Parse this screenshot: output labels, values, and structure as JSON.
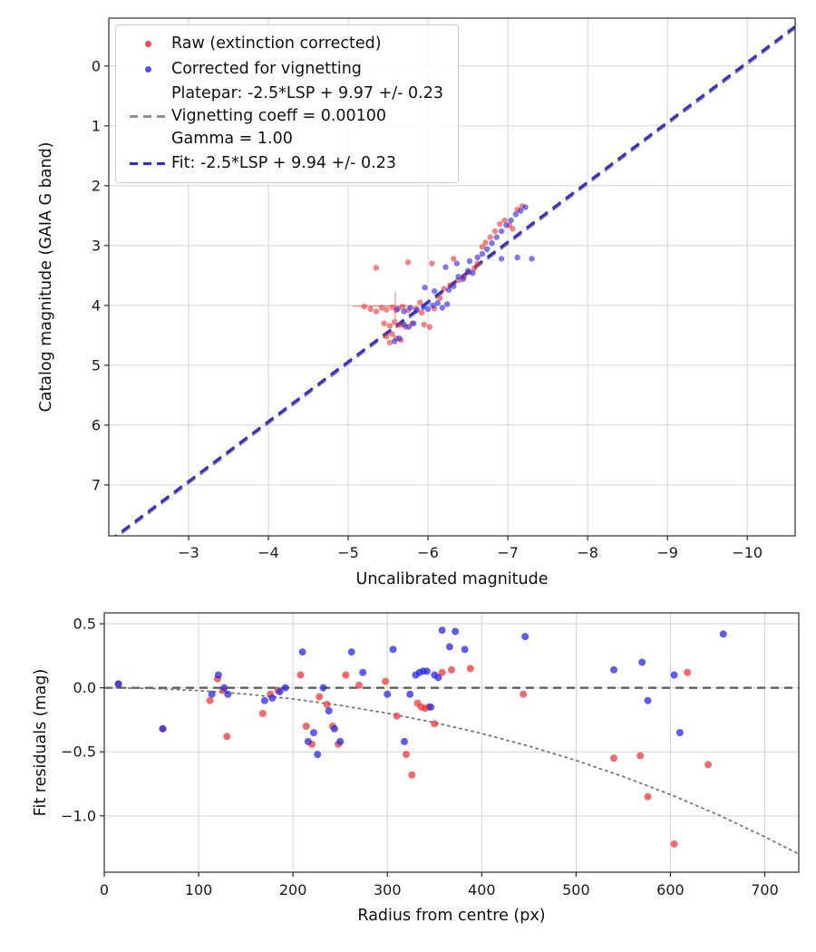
{
  "chart_data": [
    {
      "type": "scatter",
      "name": "magnitude-fit-plot",
      "title": "",
      "xlabel": "Uncalibrated magnitude",
      "ylabel": "Catalog magnitude (GAIA G band)",
      "xlim": [
        -2.0,
        -10.6
      ],
      "ylim": [
        7.85,
        -0.8
      ],
      "grid": true,
      "xticks": [
        -3,
        -4,
        -5,
        -6,
        -7,
        -8,
        -9,
        -10
      ],
      "xtick_labels": [
        "−3",
        "−4",
        "−5",
        "−6",
        "−7",
        "−8",
        "−9",
        "−10"
      ],
      "yticks": [
        0,
        1,
        2,
        3,
        4,
        5,
        6,
        7
      ],
      "ytick_labels": [
        "0",
        "1",
        "2",
        "3",
        "4",
        "5",
        "6",
        "7"
      ],
      "legend": [
        {
          "marker": "dot",
          "color": "#eb2d2d",
          "label": "Raw (extinction corrected)"
        },
        {
          "marker": "dot",
          "color": "#3232eb",
          "label": "Corrected for vignetting"
        },
        {
          "marker": "dash",
          "color": "#8f8f8f",
          "lines": [
            "Platepar: -2.5*LSP + 9.97 +/- 0.23",
            "Vignetting coeff = 0.00100",
            "Gamma = 1.00"
          ]
        },
        {
          "marker": "dash",
          "color": "#2a2ad9",
          "label": "Fit: -2.5*LSP + 9.94 +/- 0.23"
        }
      ],
      "series": [
        {
          "name": "platepar-line",
          "type": "line",
          "slope": 1,
          "intercept": 9.97,
          "color": "#8a8a8a",
          "dash": "11 7",
          "width": 2.6,
          "alpha": 1
        },
        {
          "name": "fit-line",
          "type": "line",
          "slope": 1,
          "intercept": 9.94,
          "color": "#2424cc",
          "dash": "11 7",
          "width": 3,
          "alpha": 0.92
        },
        {
          "name": "errorbar-horizontal",
          "type": "segment",
          "color": "#ff3030",
          "width": 1.2,
          "alpha": 0.55,
          "points": [
            [
              -5.06,
              4.01
            ],
            [
              -5.8,
              4.01
            ]
          ]
        },
        {
          "name": "errorbar-vertical",
          "type": "segment",
          "color": "#ff3030",
          "width": 1.2,
          "alpha": 0.55,
          "points": [
            [
              -5.59,
              3.78
            ],
            [
              -5.59,
              4.24
            ]
          ]
        },
        {
          "name": "raw-extinction-corrected",
          "type": "scatter",
          "color": "#f03030",
          "alpha": 0.6,
          "size": 3.2,
          "points": [
            [
              -5.2,
              4.02
            ],
            [
              -5.28,
              4.06
            ],
            [
              -5.35,
              4.1
            ],
            [
              -5.42,
              4.04
            ],
            [
              -5.48,
              4.07
            ],
            [
              -5.55,
              4.03
            ],
            [
              -5.6,
              4.08
            ],
            [
              -5.68,
              4.02
            ],
            [
              -5.75,
              4.08
            ],
            [
              -5.85,
              4.05
            ],
            [
              -5.92,
              4.12
            ],
            [
              -5.45,
              4.3
            ],
            [
              -5.52,
              4.34
            ],
            [
              -5.58,
              4.28
            ],
            [
              -5.65,
              4.33
            ],
            [
              -5.72,
              4.36
            ],
            [
              -5.8,
              4.3
            ],
            [
              -5.95,
              4.32
            ],
            [
              -6.02,
              4.36
            ],
            [
              -5.48,
              4.52
            ],
            [
              -5.55,
              4.48
            ],
            [
              -5.6,
              4.55
            ],
            [
              -5.66,
              4.58
            ],
            [
              -5.52,
              4.62
            ],
            [
              -5.9,
              3.95
            ],
            [
              -6.08,
              4.05
            ],
            [
              -6.15,
              3.88
            ],
            [
              -5.35,
              3.37
            ],
            [
              -5.75,
              3.28
            ],
            [
              -6.05,
              3.3
            ],
            [
              -6.2,
              3.72
            ],
            [
              -6.28,
              3.66
            ],
            [
              -6.38,
              3.58
            ],
            [
              -6.45,
              3.52
            ],
            [
              -6.52,
              3.44
            ],
            [
              -6.32,
              3.22
            ],
            [
              -6.58,
              3.38
            ],
            [
              -6.62,
              3.3
            ],
            [
              -6.68,
              3.02
            ],
            [
              -6.72,
              2.95
            ],
            [
              -6.78,
              2.86
            ],
            [
              -6.84,
              2.76
            ],
            [
              -6.9,
              2.64
            ],
            [
              -6.96,
              2.58
            ],
            [
              -7.02,
              2.66
            ],
            [
              -7.06,
              2.72
            ],
            [
              -7.12,
              2.4
            ],
            [
              -7.18,
              2.34
            ]
          ]
        },
        {
          "name": "corrected-for-vignetting",
          "type": "scatter",
          "color": "#2828e8",
          "alpha": 0.62,
          "size": 3.2,
          "points": [
            [
              -5.58,
              4.6
            ],
            [
              -5.64,
              4.55
            ],
            [
              -5.7,
              4.32
            ],
            [
              -5.76,
              4.36
            ],
            [
              -5.82,
              4.3
            ],
            [
              -5.62,
              4.06
            ],
            [
              -5.7,
              4.1
            ],
            [
              -5.78,
              4.04
            ],
            [
              -5.86,
              4.08
            ],
            [
              -5.94,
              4.03
            ],
            [
              -6.0,
              4.06
            ],
            [
              -6.06,
              4.0
            ],
            [
              -6.12,
              3.96
            ],
            [
              -6.18,
              4.04
            ],
            [
              -6.24,
              3.98
            ],
            [
              -5.96,
              3.7
            ],
            [
              -6.08,
              3.76
            ],
            [
              -6.26,
              3.74
            ],
            [
              -6.32,
              3.68
            ],
            [
              -6.38,
              3.52
            ],
            [
              -6.44,
              3.56
            ],
            [
              -6.5,
              3.42
            ],
            [
              -6.56,
              3.46
            ],
            [
              -6.22,
              3.36
            ],
            [
              -6.36,
              3.3
            ],
            [
              -6.52,
              3.26
            ],
            [
              -6.62,
              3.2
            ],
            [
              -6.68,
              3.14
            ],
            [
              -6.74,
              3.06
            ],
            [
              -6.8,
              2.96
            ],
            [
              -6.86,
              2.86
            ],
            [
              -6.92,
              2.76
            ],
            [
              -6.98,
              2.66
            ],
            [
              -7.04,
              2.58
            ],
            [
              -7.1,
              2.48
            ],
            [
              -7.16,
              2.42
            ],
            [
              -7.22,
              2.36
            ],
            [
              -6.92,
              3.22
            ],
            [
              -7.12,
              3.2
            ],
            [
              -7.3,
              3.22
            ]
          ]
        }
      ]
    },
    {
      "type": "scatter",
      "name": "residuals-plot",
      "title": "",
      "xlabel": "Radius from centre (px)",
      "ylabel": "Fit residuals (mag)",
      "xlim": [
        0,
        736
      ],
      "ylim": [
        -1.44,
        0.585
      ],
      "grid": true,
      "xticks": [
        0,
        100,
        200,
        300,
        400,
        500,
        600,
        700
      ],
      "xtick_labels": [
        "0",
        "100",
        "200",
        "300",
        "400",
        "500",
        "600",
        "700"
      ],
      "yticks": [
        0.5,
        0.0,
        -0.5,
        -1.0
      ],
      "ytick_labels": [
        "0.5",
        "0.0",
        "−0.5",
        "−1.0"
      ],
      "series": [
        {
          "name": "zero-residual-line",
          "type": "line",
          "slope": 0,
          "intercept": 0,
          "color": "#555555",
          "dash": "9 6",
          "width": 2.2,
          "alpha": 1
        },
        {
          "name": "vignetting-model-curve",
          "type": "curve",
          "color": "#787878",
          "dash": "2.2 4.5",
          "width": 1.8,
          "alpha": 1,
          "points": [
            [
              0,
              0
            ],
            [
              50,
              -0.005
            ],
            [
              100,
              -0.022
            ],
            [
              150,
              -0.049
            ],
            [
              200,
              -0.087
            ],
            [
              250,
              -0.137
            ],
            [
              300,
              -0.198
            ],
            [
              350,
              -0.272
            ],
            [
              400,
              -0.357
            ],
            [
              450,
              -0.455
            ],
            [
              500,
              -0.567
            ],
            [
              550,
              -0.693
            ],
            [
              600,
              -0.834
            ],
            [
              650,
              -0.99
            ],
            [
              700,
              -1.164
            ],
            [
              736,
              -1.297
            ]
          ]
        },
        {
          "name": "raw-residuals",
          "type": "scatter",
          "color": "#f03030",
          "alpha": 0.72,
          "size": 4,
          "points": [
            [
              15,
              0.03
            ],
            [
              62,
              -0.32
            ],
            [
              112,
              -0.1
            ],
            [
              120,
              0.07
            ],
            [
              126,
              -0.02
            ],
            [
              130,
              -0.38
            ],
            [
              168,
              -0.2
            ],
            [
              176,
              -0.05
            ],
            [
              184,
              -0.02
            ],
            [
              208,
              0.1
            ],
            [
              214,
              -0.3
            ],
            [
              220,
              -0.44
            ],
            [
              228,
              -0.07
            ],
            [
              236,
              -0.13
            ],
            [
              242,
              -0.3
            ],
            [
              248,
              -0.44
            ],
            [
              256,
              0.1
            ],
            [
              270,
              0.02
            ],
            [
              298,
              0.05
            ],
            [
              310,
              -0.22
            ],
            [
              320,
              -0.52
            ],
            [
              326,
              -0.68
            ],
            [
              332,
              -0.12
            ],
            [
              336,
              -0.15
            ],
            [
              340,
              -0.16
            ],
            [
              344,
              -0.15
            ],
            [
              350,
              -0.28
            ],
            [
              358,
              0.12
            ],
            [
              368,
              0.14
            ],
            [
              388,
              0.15
            ],
            [
              444,
              -0.05
            ],
            [
              540,
              -0.55
            ],
            [
              568,
              -0.53
            ],
            [
              576,
              -0.85
            ],
            [
              604,
              -1.22
            ],
            [
              618,
              0.12
            ],
            [
              640,
              -0.6
            ]
          ]
        },
        {
          "name": "corrected-residuals",
          "type": "scatter",
          "color": "#2828e8",
          "alpha": 0.75,
          "size": 4,
          "points": [
            [
              15,
              0.03
            ],
            [
              62,
              -0.32
            ],
            [
              114,
              -0.05
            ],
            [
              121,
              0.1
            ],
            [
              127,
              0.0
            ],
            [
              131,
              -0.05
            ],
            [
              170,
              -0.1
            ],
            [
              178,
              -0.08
            ],
            [
              186,
              -0.03
            ],
            [
              192,
              0.0
            ],
            [
              210,
              0.28
            ],
            [
              216,
              -0.42
            ],
            [
              222,
              -0.35
            ],
            [
              226,
              -0.52
            ],
            [
              232,
              0.0
            ],
            [
              238,
              -0.18
            ],
            [
              244,
              -0.32
            ],
            [
              250,
              -0.42
            ],
            [
              262,
              0.28
            ],
            [
              274,
              0.12
            ],
            [
              300,
              -0.05
            ],
            [
              306,
              0.3
            ],
            [
              318,
              -0.42
            ],
            [
              324,
              -0.05
            ],
            [
              330,
              0.1
            ],
            [
              334,
              0.12
            ],
            [
              338,
              0.13
            ],
            [
              342,
              0.13
            ],
            [
              346,
              -0.15
            ],
            [
              350,
              0.1
            ],
            [
              354,
              0.08
            ],
            [
              358,
              0.45
            ],
            [
              366,
              0.32
            ],
            [
              372,
              0.44
            ],
            [
              382,
              0.3
            ],
            [
              446,
              0.4
            ],
            [
              540,
              0.14
            ],
            [
              570,
              0.2
            ],
            [
              576,
              -0.1
            ],
            [
              604,
              0.1
            ],
            [
              610,
              -0.35
            ],
            [
              656,
              0.42
            ]
          ]
        }
      ]
    }
  ]
}
